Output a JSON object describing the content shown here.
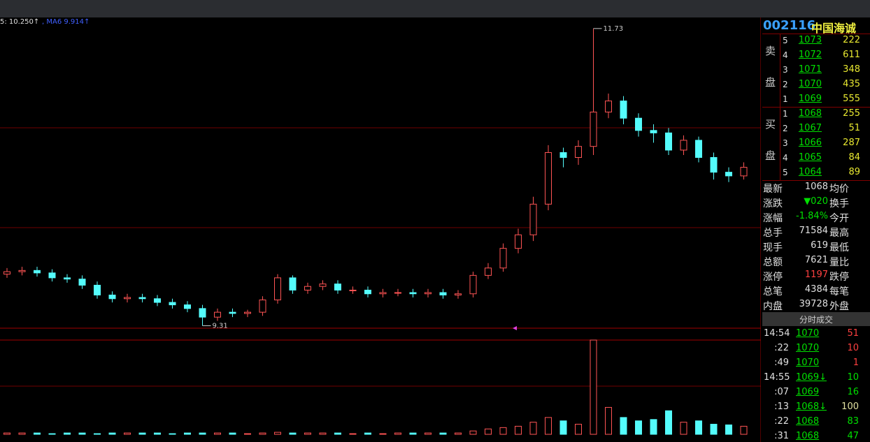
{
  "toolbar": {
    "ma5": "5: 10.250↑",
    "ma6": ", MA6  9.914↑"
  },
  "chart_data": {
    "type": "candlestick",
    "open": [
      9.73,
      9.75,
      9.76,
      9.74,
      9.7,
      9.69,
      9.64,
      9.56,
      9.53,
      9.54,
      9.53,
      9.5,
      9.48,
      9.45,
      9.38,
      9.42,
      9.41,
      9.42,
      9.52,
      9.7,
      9.6,
      9.63,
      9.65,
      9.6,
      9.6,
      9.57,
      9.58,
      9.58,
      9.57,
      9.58,
      9.56,
      9.57,
      9.72,
      9.78,
      9.94,
      10.05,
      10.3,
      10.72,
      10.68,
      10.77,
      11.05,
      11.14,
      11.0,
      10.9,
      10.88,
      10.74,
      10.82,
      10.68,
      10.56,
      10.53
    ],
    "high": [
      9.78,
      9.79,
      9.79,
      9.77,
      9.73,
      9.72,
      9.67,
      9.59,
      9.57,
      9.57,
      9.56,
      9.53,
      9.51,
      9.48,
      9.45,
      9.45,
      9.44,
      9.55,
      9.73,
      9.72,
      9.66,
      9.68,
      9.68,
      9.63,
      9.63,
      9.61,
      9.61,
      9.61,
      9.61,
      9.61,
      9.6,
      9.75,
      9.82,
      9.98,
      10.1,
      10.36,
      10.78,
      10.76,
      10.82,
      11.73,
      11.2,
      11.18,
      11.04,
      10.95,
      10.92,
      10.86,
      10.85,
      10.72,
      10.6,
      10.64
    ],
    "low": [
      9.7,
      9.72,
      9.71,
      9.67,
      9.66,
      9.61,
      9.53,
      9.5,
      9.5,
      9.5,
      9.47,
      9.45,
      9.42,
      9.31,
      9.35,
      9.38,
      9.38,
      9.39,
      9.49,
      9.57,
      9.57,
      9.6,
      9.57,
      9.57,
      9.54,
      9.54,
      9.55,
      9.54,
      9.54,
      9.53,
      9.53,
      9.54,
      9.69,
      9.75,
      9.9,
      10.0,
      10.25,
      10.6,
      10.62,
      10.7,
      11.0,
      10.95,
      10.85,
      10.8,
      10.7,
      10.7,
      10.64,
      10.5,
      10.48,
      10.5
    ],
    "close": [
      9.75,
      9.76,
      9.74,
      9.7,
      9.69,
      9.64,
      9.56,
      9.53,
      9.54,
      9.53,
      9.5,
      9.48,
      9.45,
      9.38,
      9.42,
      9.41,
      9.42,
      9.52,
      9.7,
      9.6,
      9.63,
      9.65,
      9.6,
      9.6,
      9.57,
      9.58,
      9.58,
      9.57,
      9.58,
      9.56,
      9.57,
      9.72,
      9.78,
      9.94,
      10.05,
      10.3,
      10.72,
      10.68,
      10.77,
      11.05,
      11.14,
      11.0,
      10.9,
      10.88,
      10.74,
      10.82,
      10.68,
      10.56,
      10.53,
      10.6
    ],
    "ylim": [
      9.29,
      11.82
    ],
    "volume": [
      2,
      2,
      2,
      1,
      2,
      2,
      1,
      2,
      2,
      2,
      2,
      1,
      2,
      2,
      2,
      2,
      1,
      2,
      3,
      2,
      2,
      2,
      2,
      1,
      2,
      1,
      2,
      2,
      2,
      2,
      2,
      5,
      8,
      10,
      12,
      18,
      25,
      20,
      15,
      140,
      40,
      25,
      20,
      22,
      35,
      18,
      20,
      15,
      14,
      12
    ],
    "volume_ylim": [
      0,
      140
    ],
    "up_color": "#ff5454",
    "down_color": "#54fcfc"
  },
  "order_book": {
    "code": "002116",
    "name": "中国海诚",
    "sell_label": [
      "卖",
      "盘"
    ],
    "buy_label": [
      "买",
      "盘"
    ],
    "sell": [
      {
        "level": "5",
        "price": "1073",
        "volume": 222
      },
      {
        "level": "4",
        "price": "1072",
        "volume": 611
      },
      {
        "level": "3",
        "price": "1071",
        "volume": 348
      },
      {
        "level": "2",
        "price": "1070",
        "volume": 435
      },
      {
        "level": "1",
        "price": "1069",
        "volume": 555
      }
    ],
    "buy": [
      {
        "level": "1",
        "price": "1068",
        "volume": 255
      },
      {
        "level": "2",
        "price": "1067",
        "volume": 51
      },
      {
        "level": "3",
        "price": "1066",
        "volume": 287
      },
      {
        "level": "4",
        "price": "1065",
        "volume": 84
      },
      {
        "level": "5",
        "price": "1064",
        "volume": 89
      }
    ]
  },
  "stats": [
    {
      "label": "最新",
      "value": "1068",
      "label2": "均价",
      "color": "#e0e0e0"
    },
    {
      "label": "涨跌",
      "value": "▼020",
      "label2": "换手",
      "color": "#00e000"
    },
    {
      "label": "涨幅",
      "value": "-1.84%",
      "label2": "今开",
      "color": "#00e000"
    },
    {
      "label": "总手",
      "value": "71584",
      "label2": "最高",
      "color": "#e0e0e0"
    },
    {
      "label": "现手",
      "value": "619",
      "label2": "最低",
      "color": "#e0e0e0"
    },
    {
      "label": "总额",
      "value": "7621",
      "label2": "量比",
      "color": "#e0e0e0"
    },
    {
      "label": "涨停",
      "value": "1197",
      "label2": "跌停",
      "color": "#ff4040"
    },
    {
      "label": "总笔",
      "value": "4384",
      "label2": "每笔",
      "color": "#e0e0e0"
    },
    {
      "label": "内盘",
      "value": "39728",
      "label2": "外盘",
      "color": "#e0e0e0"
    }
  ],
  "trades": {
    "title": "分时成交",
    "rows": [
      {
        "time": "14:54",
        "price": "1070",
        "volume": 51,
        "color": "#ff4040"
      },
      {
        "time": ":22",
        "price": "1070",
        "volume": 10,
        "color": "#ff4040"
      },
      {
        "time": ":49",
        "price": "1070",
        "volume": 1,
        "color": "#ff4040"
      },
      {
        "time": "14:55",
        "price": "1069↓",
        "volume": 10,
        "color": "#00e000"
      },
      {
        "time": ":07",
        "price": "1069",
        "volume": 16,
        "color": "#00e000"
      },
      {
        "time": ":13",
        "price": "1068↓",
        "volume": 100,
        "color": "#e0e0a0"
      },
      {
        "time": ":22",
        "price": "1068",
        "volume": 83,
        "color": "#00e000"
      },
      {
        "time": ":31",
        "price": "1068",
        "volume": 47,
        "color": "#00e000"
      }
    ]
  }
}
